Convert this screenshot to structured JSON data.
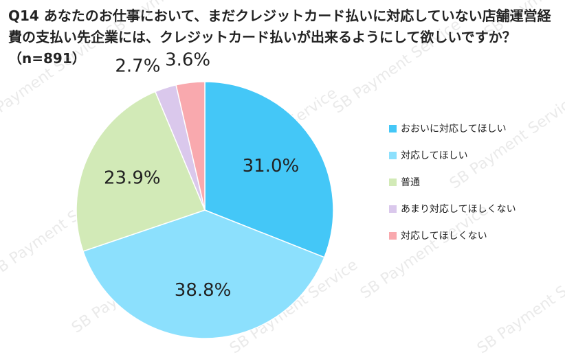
{
  "title": "Q14 あなたのお仕事において、まだクレジットカード払いに対応していない店舗運営経費の支払い先企業には、クレジットカード払いが出来るようにして欲しいですか？ （n=891）",
  "watermark": "SB Payment Service",
  "colors": {
    "strong_yes": "#44c7f7",
    "yes": "#8ce0fd",
    "neutral": "#d2eab7",
    "no": "#dac8ec",
    "strong_no": "#f9a9ae"
  },
  "chart_data": {
    "type": "pie",
    "n": 891,
    "unit": "%",
    "slices": [
      {
        "label": "おおいに対応してほしい",
        "value": 31.0,
        "value_label": "31.0%",
        "color": "#44c7f7"
      },
      {
        "label": "対応してほしい",
        "value": 38.8,
        "value_label": "38.8%",
        "color": "#8ce0fd"
      },
      {
        "label": "普通",
        "value": 23.9,
        "value_label": "23.9%",
        "color": "#d2eab7"
      },
      {
        "label": "あまり対応してほしくない",
        "value": 2.7,
        "value_label": "2.7%",
        "color": "#dac8ec"
      },
      {
        "label": "対応してほしくない",
        "value": 3.6,
        "value_label": "3.6%",
        "color": "#f9a9ae"
      }
    ],
    "start_angle": "12 o'clock",
    "direction": "clockwise",
    "legend_position": "right"
  }
}
